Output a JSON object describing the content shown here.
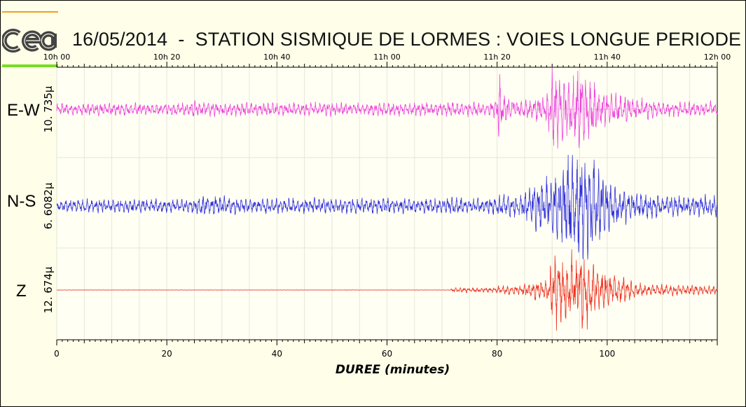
{
  "title": "16/05/2014  -  STATION SISMIQUE DE LORMES : VOIES LONGUE PERIODE",
  "chart_data": {
    "type": "line",
    "title": "16/05/2014  -  STATION SISMIQUE DE LORMES : VOIES LONGUE PERIODE",
    "xlabel": "DUREE (minutes)",
    "xlim": [
      0,
      120
    ],
    "x_ticks": [
      0,
      20,
      40,
      60,
      80,
      100
    ],
    "top_time_ticks": [
      "10h 00",
      "10h 20",
      "10h 40",
      "11h 00",
      "11h 20",
      "11h 40",
      "12h 00"
    ],
    "grid": true,
    "channels": [
      {
        "name": "E-W",
        "scale": "10. 735μ",
        "color": "#ee44dd",
        "envelope": [
          {
            "x": 0,
            "amp": 0.12
          },
          {
            "x": 24,
            "amp": 0.13
          },
          {
            "x": 24.5,
            "amp": 0.2
          },
          {
            "x": 26,
            "amp": 0.14
          },
          {
            "x": 60,
            "amp": 0.13
          },
          {
            "x": 78,
            "amp": 0.15
          },
          {
            "x": 80,
            "amp": 0.2
          },
          {
            "x": 80.3,
            "amp": 0.85
          },
          {
            "x": 81,
            "amp": 0.35
          },
          {
            "x": 84,
            "amp": 0.18
          },
          {
            "x": 89,
            "amp": 0.3
          },
          {
            "x": 90,
            "amp": 0.95
          },
          {
            "x": 92,
            "amp": 0.6
          },
          {
            "x": 95,
            "amp": 0.8
          },
          {
            "x": 97,
            "amp": 0.6
          },
          {
            "x": 100,
            "amp": 0.35
          },
          {
            "x": 106,
            "amp": 0.22
          },
          {
            "x": 112,
            "amp": 0.15
          },
          {
            "x": 120,
            "amp": 0.16
          }
        ]
      },
      {
        "name": "N-S",
        "scale": "6. 6082μ",
        "color": "#3333dd",
        "envelope": [
          {
            "x": 0,
            "amp": 0.12
          },
          {
            "x": 24,
            "amp": 0.13
          },
          {
            "x": 26,
            "amp": 0.2
          },
          {
            "x": 30,
            "amp": 0.2
          },
          {
            "x": 33,
            "amp": 0.14
          },
          {
            "x": 60,
            "amp": 0.14
          },
          {
            "x": 79,
            "amp": 0.15
          },
          {
            "x": 80.5,
            "amp": 0.22
          },
          {
            "x": 84,
            "amp": 0.2
          },
          {
            "x": 87,
            "amp": 0.45
          },
          {
            "x": 90,
            "amp": 0.55
          },
          {
            "x": 93,
            "amp": 0.9
          },
          {
            "x": 97,
            "amp": 0.95
          },
          {
            "x": 100,
            "amp": 0.45
          },
          {
            "x": 104,
            "amp": 0.28
          },
          {
            "x": 110,
            "amp": 0.2
          },
          {
            "x": 120,
            "amp": 0.2
          }
        ]
      },
      {
        "name": "Z",
        "scale": "12. 674μ",
        "color": "#ee3322",
        "envelope": [
          {
            "x": 0,
            "amp": 0.004
          },
          {
            "x": 71.5,
            "amp": 0.004
          },
          {
            "x": 72,
            "amp": 0.06
          },
          {
            "x": 79,
            "amp": 0.05
          },
          {
            "x": 80.5,
            "amp": 0.1
          },
          {
            "x": 84,
            "amp": 0.12
          },
          {
            "x": 89.5,
            "amp": 0.3
          },
          {
            "x": 90,
            "amp": 1.0
          },
          {
            "x": 92,
            "amp": 0.7
          },
          {
            "x": 96,
            "amp": 0.95
          },
          {
            "x": 98,
            "amp": 0.55
          },
          {
            "x": 102,
            "amp": 0.35
          },
          {
            "x": 106,
            "amp": 0.15
          },
          {
            "x": 120,
            "amp": 0.1
          }
        ]
      }
    ]
  }
}
